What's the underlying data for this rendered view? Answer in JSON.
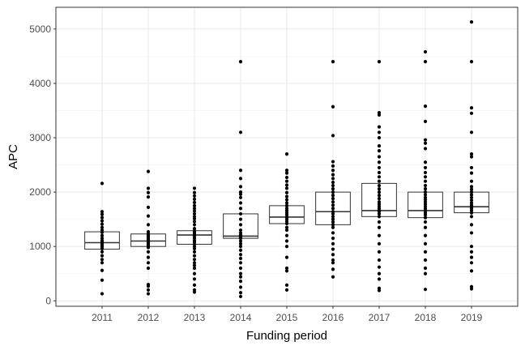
{
  "chart_data": {
    "type": "box",
    "xlabel": "Funding period",
    "ylabel": "APC",
    "categories": [
      "2011",
      "2012",
      "2013",
      "2014",
      "2015",
      "2016",
      "2017",
      "2018",
      "2019"
    ],
    "ylim": [
      -100,
      5400
    ],
    "yticks": [
      0,
      1000,
      2000,
      3000,
      4000,
      5000
    ],
    "yticks_labels": [
      "0",
      "1000",
      "2000",
      "3000",
      "4000",
      "5000"
    ],
    "grid": true,
    "theme": "bw",
    "boxes": [
      {
        "category": "2011",
        "q1": 950,
        "median": 1070,
        "q3": 1270
      },
      {
        "category": "2012",
        "q1": 1000,
        "median": 1100,
        "q3": 1230
      },
      {
        "category": "2013",
        "q1": 1040,
        "median": 1210,
        "q3": 1290
      },
      {
        "category": "2014",
        "q1": 1150,
        "median": 1190,
        "q3": 1600
      },
      {
        "category": "2015",
        "q1": 1420,
        "median": 1540,
        "q3": 1750
      },
      {
        "category": "2016",
        "q1": 1400,
        "median": 1640,
        "q3": 2000
      },
      {
        "category": "2017",
        "q1": 1550,
        "median": 1660,
        "q3": 2160
      },
      {
        "category": "2018",
        "q1": 1530,
        "median": 1660,
        "q3": 2000
      },
      {
        "category": "2019",
        "q1": 1620,
        "median": 1730,
        "q3": 2000
      }
    ],
    "points": [
      {
        "category": "2011",
        "values": [
          130,
          380,
          560,
          700,
          760,
          830,
          900,
          960,
          990,
          1020,
          1050,
          1070,
          1090,
          1110,
          1150,
          1200,
          1260,
          1300,
          1350,
          1410,
          1470,
          1530,
          1590,
          1640,
          2160
        ]
      },
      {
        "category": "2012",
        "values": [
          130,
          200,
          270,
          300,
          600,
          700,
          800,
          900,
          980,
          1000,
          1020,
          1050,
          1080,
          1100,
          1120,
          1150,
          1180,
          1200,
          1230,
          1270,
          1400,
          1560,
          1720,
          1910,
          1990,
          2070,
          2380
        ]
      },
      {
        "category": "2013",
        "values": [
          160,
          200,
          290,
          400,
          500,
          600,
          650,
          700,
          760,
          830,
          900,
          960,
          1000,
          1040,
          1080,
          1110,
          1150,
          1190,
          1210,
          1230,
          1260,
          1290,
          1330,
          1400,
          1460,
          1510,
          1550,
          1600,
          1650,
          1700,
          1750,
          1810,
          1870,
          1930,
          1990,
          2070
        ]
      },
      {
        "category": "2014",
        "values": [
          80,
          150,
          250,
          360,
          440,
          500,
          600,
          700,
          780,
          850,
          930,
          1000,
          1050,
          1100,
          1150,
          1170,
          1190,
          1210,
          1250,
          1300,
          1400,
          1500,
          1600,
          1700,
          1800,
          1900,
          1960,
          2000,
          2100,
          2250,
          2400,
          3100,
          4400
        ]
      },
      {
        "category": "2015",
        "values": [
          200,
          290,
          550,
          600,
          800,
          1000,
          1100,
          1200,
          1300,
          1350,
          1420,
          1460,
          1500,
          1540,
          1580,
          1620,
          1660,
          1700,
          1750,
          1800,
          1860,
          1920,
          1990,
          2070,
          2130,
          2200,
          2270,
          2350,
          2400,
          2700
        ]
      },
      {
        "category": "2016",
        "values": [
          440,
          580,
          700,
          750,
          850,
          950,
          1050,
          1150,
          1250,
          1350,
          1400,
          1450,
          1500,
          1550,
          1600,
          1640,
          1700,
          1760,
          1820,
          1880,
          1940,
          2000,
          2060,
          2120,
          2180,
          2250,
          2320,
          2400,
          2480,
          2560,
          3040,
          3570,
          4400
        ]
      },
      {
        "category": "2017",
        "values": [
          190,
          230,
          400,
          500,
          620,
          750,
          900,
          1050,
          1200,
          1350,
          1450,
          1550,
          1600,
          1640,
          1660,
          1700,
          1740,
          1780,
          1820,
          1880,
          1940,
          2000,
          2060,
          2120,
          2200,
          2280,
          2360,
          2450,
          2550,
          2650,
          2760,
          2850,
          3000,
          3100,
          3200,
          3420,
          3460,
          4400
        ]
      },
      {
        "category": "2018",
        "values": [
          210,
          500,
          600,
          750,
          900,
          1050,
          1200,
          1350,
          1450,
          1530,
          1580,
          1620,
          1660,
          1700,
          1740,
          1780,
          1820,
          1860,
          1900,
          1950,
          2000,
          2060,
          2120,
          2200,
          2280,
          2360,
          2450,
          2550,
          2800,
          2900,
          2960,
          3300,
          3580,
          4400,
          4580
        ]
      },
      {
        "category": "2019",
        "values": [
          220,
          260,
          550,
          700,
          800,
          900,
          1000,
          1250,
          1400,
          1550,
          1620,
          1660,
          1700,
          1730,
          1760,
          1800,
          1850,
          1900,
          1950,
          2000,
          2050,
          2100,
          2200,
          2350,
          2450,
          2650,
          2700,
          3100,
          3450,
          3550,
          4400,
          5130
        ]
      }
    ]
  }
}
